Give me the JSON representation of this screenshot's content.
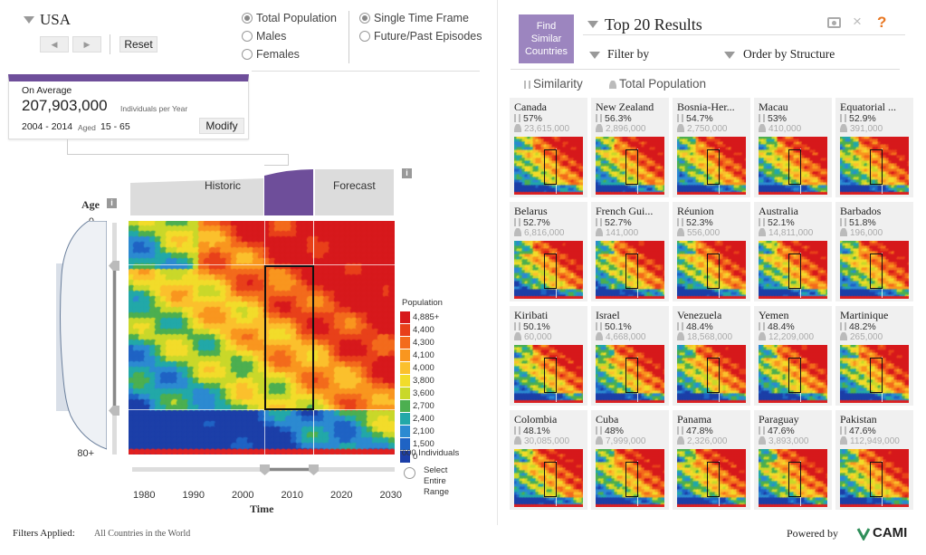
{
  "country": "USA",
  "controls": {
    "reset": "Reset",
    "modify": "Modify"
  },
  "radios_pop": [
    {
      "label": "Total Population",
      "on": true
    },
    {
      "label": "Males",
      "on": false
    },
    {
      "label": "Females",
      "on": false
    }
  ],
  "radios_time": [
    {
      "label": "Single Time Frame",
      "on": true
    },
    {
      "label": "Future/Past Episodes",
      "on": false
    }
  ],
  "summary": {
    "on_average": "On Average",
    "value": "207,903,000",
    "unit": "Individuals per Year",
    "years": "2004 - 2014",
    "aged_label": "Aged",
    "aged": "15 - 65"
  },
  "timeline": {
    "historic": "Historic",
    "forecast": "Forecast"
  },
  "axis": {
    "age_label": "Age",
    "age_ticks": [
      "0",
      "10",
      "20",
      "30",
      "40",
      "50",
      "60",
      "70",
      "80+"
    ],
    "time_label": "Time",
    "time_ticks": [
      "1980",
      "1990",
      "2000",
      "2010",
      "2020",
      "2030"
    ]
  },
  "legend": {
    "title": "Population",
    "labels": [
      "4,885+",
      "4,400",
      "4,300",
      "4,100",
      "4,000",
      "3,800",
      "3,600",
      "2,700",
      "2,400",
      "2,100",
      "1,500",
      "0"
    ],
    "colors": [
      "#d7191c",
      "#e8401a",
      "#f36b1c",
      "#f9961f",
      "#fbc02d",
      "#f2dc2a",
      "#c9d82a",
      "#4caf50",
      "#22a8a8",
      "#2c8ad1",
      "#1f63c4",
      "#1c3fa8"
    ],
    "footer": "'000 Individuals"
  },
  "select_range": "Select Entire Range",
  "footer": {
    "filters_label": "Filters Applied:",
    "filters_value": "All Countries in the World",
    "powered": "Powered by",
    "brand": "CAMI"
  },
  "right": {
    "find_btn": "Find Similar Countries",
    "title": "Top 20 Results",
    "filter": "Filter by",
    "order": "Order by Structure",
    "sort_similarity": "Similarity",
    "sort_population": "Total Population",
    "close_icon": "×",
    "help_icon": "?"
  },
  "results": [
    {
      "name": "Canada",
      "sim": "57%",
      "pop": "23,615,000"
    },
    {
      "name": "New Zealand",
      "sim": "56.3%",
      "pop": "2,896,000"
    },
    {
      "name": "Bosnia-Her...",
      "sim": "54.7%",
      "pop": "2,750,000"
    },
    {
      "name": "Macau",
      "sim": "53%",
      "pop": "410,000"
    },
    {
      "name": "Equatorial ...",
      "sim": "52.9%",
      "pop": "391,000"
    },
    {
      "name": "Belarus",
      "sim": "52.7%",
      "pop": "6,816,000"
    },
    {
      "name": "French Gui...",
      "sim": "52.7%",
      "pop": "141,000"
    },
    {
      "name": "Réunion",
      "sim": "52.3%",
      "pop": "556,000"
    },
    {
      "name": "Australia",
      "sim": "52.1%",
      "pop": "14,811,000"
    },
    {
      "name": "Barbados",
      "sim": "51.8%",
      "pop": "196,000"
    },
    {
      "name": "Kiribati",
      "sim": "50.1%",
      "pop": "60,000"
    },
    {
      "name": "Israel",
      "sim": "50.1%",
      "pop": "4,668,000"
    },
    {
      "name": "Venezuela",
      "sim": "48.4%",
      "pop": "18,568,000"
    },
    {
      "name": "Yemen",
      "sim": "48.4%",
      "pop": "12,209,000"
    },
    {
      "name": "Martinique",
      "sim": "48.2%",
      "pop": "265,000"
    },
    {
      "name": "Colombia",
      "sim": "48.1%",
      "pop": "30,085,000"
    },
    {
      "name": "Cuba",
      "sim": "48%",
      "pop": "7,999,000"
    },
    {
      "name": "Panama",
      "sim": "47.8%",
      "pop": "2,326,000"
    },
    {
      "name": "Paraguay",
      "sim": "47.6%",
      "pop": "3,893,000"
    },
    {
      "name": "Pakistan",
      "sim": "47.6%",
      "pop": "112,949,000"
    }
  ]
}
